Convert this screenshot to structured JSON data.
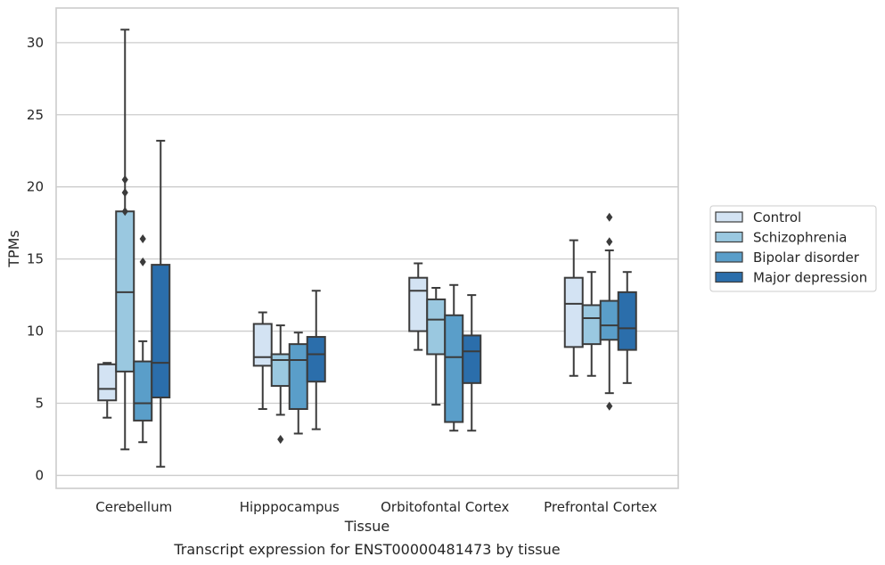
{
  "chart_data": {
    "type": "box",
    "caption": "Transcript expression for ENST00000481473 by tissue",
    "xlabel": "Tissue",
    "ylabel": "TPMs",
    "ylim": [
      -0.9,
      32.4
    ],
    "yticks": [
      0,
      5,
      10,
      15,
      20,
      25,
      30
    ],
    "grid": true,
    "legend_position": "right",
    "categories": [
      "Cerebellum",
      "Hipppocampus",
      "Orbitofontal Cortex",
      "Prefrontal Cortex"
    ],
    "series": [
      {
        "name": "Control",
        "color": "#d3e3f3",
        "boxes": [
          {
            "whisker_low": 4.0,
            "q1": 5.2,
            "median": 6.0,
            "q3": 7.7,
            "whisker_high": 7.8,
            "outliers": []
          },
          {
            "whisker_low": 4.6,
            "q1": 7.6,
            "median": 8.2,
            "q3": 10.5,
            "whisker_high": 11.3,
            "outliers": []
          },
          {
            "whisker_low": 8.7,
            "q1": 10.0,
            "median": 12.8,
            "q3": 13.7,
            "whisker_high": 14.7,
            "outliers": []
          },
          {
            "whisker_low": 6.9,
            "q1": 8.9,
            "median": 11.9,
            "q3": 13.7,
            "whisker_high": 16.3,
            "outliers": []
          }
        ]
      },
      {
        "name": "Schizophrenia",
        "color": "#9ac8e0",
        "boxes": [
          {
            "whisker_low": 1.8,
            "q1": 7.2,
            "median": 12.7,
            "q3": 18.3,
            "whisker_high": 30.9,
            "outliers": [
              18.3,
              19.6,
              20.5
            ]
          },
          {
            "whisker_low": 4.2,
            "q1": 6.2,
            "median": 8.0,
            "q3": 8.4,
            "whisker_high": 10.4,
            "outliers": [
              2.5
            ]
          },
          {
            "whisker_low": 4.9,
            "q1": 8.4,
            "median": 10.8,
            "q3": 12.2,
            "whisker_high": 13.0,
            "outliers": []
          },
          {
            "whisker_low": 6.9,
            "q1": 9.1,
            "median": 10.9,
            "q3": 11.8,
            "whisker_high": 14.1,
            "outliers": []
          }
        ]
      },
      {
        "name": "Bipolar disorder",
        "color": "#5a9ec9",
        "boxes": [
          {
            "whisker_low": 2.3,
            "q1": 3.8,
            "median": 5.0,
            "q3": 7.9,
            "whisker_high": 9.3,
            "outliers": [
              14.8,
              16.4
            ]
          },
          {
            "whisker_low": 2.9,
            "q1": 4.6,
            "median": 8.0,
            "q3": 9.1,
            "whisker_high": 9.9,
            "outliers": []
          },
          {
            "whisker_low": 3.1,
            "q1": 3.7,
            "median": 8.2,
            "q3": 11.1,
            "whisker_high": 13.2,
            "outliers": []
          },
          {
            "whisker_low": 5.7,
            "q1": 9.4,
            "median": 10.4,
            "q3": 12.1,
            "whisker_high": 15.6,
            "outliers": [
              4.8,
              16.2,
              17.9
            ]
          }
        ]
      },
      {
        "name": "Major depression",
        "color": "#2b6eab",
        "boxes": [
          {
            "whisker_low": 0.6,
            "q1": 5.4,
            "median": 7.8,
            "q3": 14.6,
            "whisker_high": 23.2,
            "outliers": []
          },
          {
            "whisker_low": 3.2,
            "q1": 6.5,
            "median": 8.4,
            "q3": 9.6,
            "whisker_high": 12.8,
            "outliers": []
          },
          {
            "whisker_low": 3.1,
            "q1": 6.4,
            "median": 8.6,
            "q3": 9.7,
            "whisker_high": 12.5,
            "outliers": []
          },
          {
            "whisker_low": 6.4,
            "q1": 8.7,
            "median": 10.2,
            "q3": 12.7,
            "whisker_high": 14.1,
            "outliers": []
          }
        ]
      }
    ]
  }
}
